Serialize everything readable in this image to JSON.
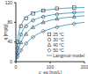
{
  "chart_data": {
    "type": "scatter",
    "x_label": "c_eq [mg/L]",
    "y_label": "q [mg/g]",
    "xlim": [
      0,
      200
    ],
    "xticks": [
      0,
      100,
      200
    ],
    "ylim": [
      0,
      120
    ],
    "yticks": [
      0,
      40,
      80,
      120
    ],
    "legend": "lower right",
    "series": [
      {
        "name": "25 °C",
        "color": "#333333",
        "marker": "square",
        "x": [
          5,
          15,
          30,
          50,
          80,
          120,
          170
        ],
        "y": [
          40,
          72,
          88,
          98,
          104,
          108,
          110
        ]
      },
      {
        "name": "30 °C",
        "color": "#333333",
        "marker": "circle",
        "x": [
          5,
          15,
          30,
          50,
          80,
          120,
          170
        ],
        "y": [
          28,
          55,
          72,
          84,
          91,
          96,
          100
        ]
      },
      {
        "name": "40 °C",
        "color": "#333333",
        "marker": "triangle",
        "x": [
          5,
          15,
          30,
          50,
          80,
          120,
          170
        ],
        "y": [
          18,
          39,
          56,
          70,
          80,
          87,
          91
        ]
      },
      {
        "name": "50 °C",
        "color": "#333333",
        "marker": "diamond",
        "x": [
          5,
          15,
          30,
          50,
          80,
          120,
          170
        ],
        "y": [
          10,
          23,
          37,
          50,
          62,
          70,
          77
        ]
      }
    ],
    "model": {
      "name": "Langmuir model",
      "type": "line",
      "color": "#2a8fbd",
      "curves": [
        {
          "x": [
            0,
            5,
            10,
            20,
            40,
            60,
            100,
            150,
            200
          ],
          "y": [
            0,
            43,
            63,
            81,
            95,
            101,
            106,
            109,
            110
          ]
        },
        {
          "x": [
            0,
            5,
            10,
            20,
            40,
            60,
            100,
            150,
            200
          ],
          "y": [
            0,
            28,
            44.5,
            63,
            79.6,
            87,
            94.5,
            98.6,
            100.8
          ]
        },
        {
          "x": [
            0,
            5,
            10,
            20,
            40,
            60,
            100,
            150,
            200
          ],
          "y": [
            0,
            17.5,
            30,
            46.7,
            64.6,
            74,
            84,
            90,
            93.3
          ]
        },
        {
          "x": [
            0,
            5,
            10,
            20,
            40,
            60,
            100,
            150,
            200
          ],
          "y": [
            0,
            9.1,
            16.7,
            28.6,
            44.4,
            54.5,
            66.7,
            75,
            80
          ]
        }
      ]
    }
  }
}
